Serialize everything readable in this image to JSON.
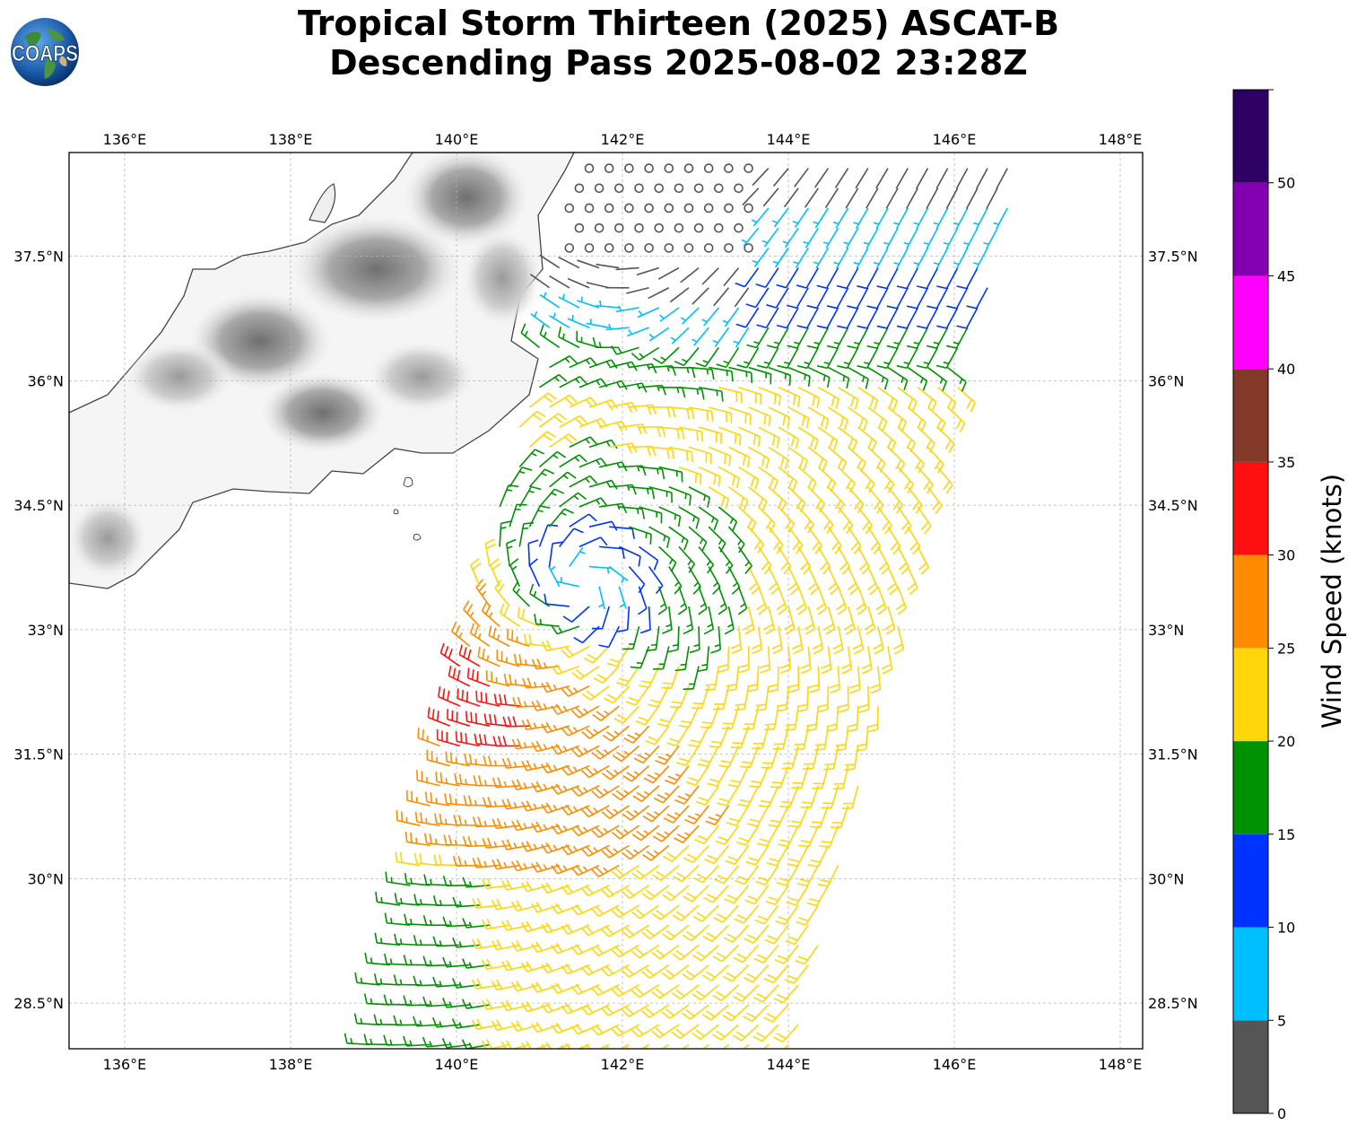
{
  "title": {
    "line1": "Tropical Storm Thirteen (2025) ASCAT-B",
    "line2": "Descending Pass 2025-08-02 23:28Z"
  },
  "logo": {
    "text": "COAPS",
    "icon": "globe-logo-icon"
  },
  "map": {
    "lon_range": [
      135.33,
      148.27
    ],
    "lat_range": [
      27.95,
      38.75
    ],
    "lon_ticks": [
      {
        "value": 136,
        "label": "136°E"
      },
      {
        "value": 138,
        "label": "138°E"
      },
      {
        "value": 140,
        "label": "140°E"
      },
      {
        "value": 142,
        "label": "142°E"
      },
      {
        "value": 144,
        "label": "144°E"
      },
      {
        "value": 146,
        "label": "146°E"
      },
      {
        "value": 148,
        "label": "148°E"
      }
    ],
    "lat_ticks": [
      {
        "value": 37.5,
        "label": "37.5°N"
      },
      {
        "value": 36,
        "label": "36°N"
      },
      {
        "value": 34.5,
        "label": "34.5°N"
      },
      {
        "value": 33,
        "label": "33°N"
      },
      {
        "value": 31.5,
        "label": "31.5°N"
      },
      {
        "value": 30,
        "label": "30°N"
      },
      {
        "value": 28.5,
        "label": "28.5°N"
      }
    ],
    "gridlines": true,
    "terrain_shading": "grayscale"
  },
  "storm": {
    "center_lon": 141.5,
    "center_lat": 33.55,
    "circulation": "cyclonic",
    "max_wind_kt": 34
  },
  "swath": {
    "corners": [
      [
        141.5,
        38.7
      ],
      [
        146.8,
        38.7
      ],
      [
        144.1,
        28.0
      ],
      [
        138.9,
        28.0
      ]
    ]
  },
  "colorbar": {
    "title": "Wind Speed (knots)",
    "ticks": [
      "0",
      "5",
      "10",
      "15",
      "20",
      "25",
      "30",
      "35",
      "40",
      "45",
      "50"
    ],
    "bins": [
      {
        "min": 0,
        "max": 5,
        "color": "#555555"
      },
      {
        "min": 5,
        "max": 10,
        "color": "#00bfff"
      },
      {
        "min": 10,
        "max": 15,
        "color": "#0033ff"
      },
      {
        "min": 15,
        "max": 20,
        "color": "#009100"
      },
      {
        "min": 20,
        "max": 25,
        "color": "#ffd60a"
      },
      {
        "min": 25,
        "max": 30,
        "color": "#ff8c00"
      },
      {
        "min": 30,
        "max": 35,
        "color": "#ff1010"
      },
      {
        "min": 35,
        "max": 40,
        "color": "#82392a"
      },
      {
        "min": 40,
        "max": 45,
        "color": "#ff00ff"
      },
      {
        "min": 45,
        "max": 50,
        "color": "#8200b0"
      },
      {
        "min": 50,
        "max": 55,
        "color": "#2e0063"
      }
    ]
  }
}
